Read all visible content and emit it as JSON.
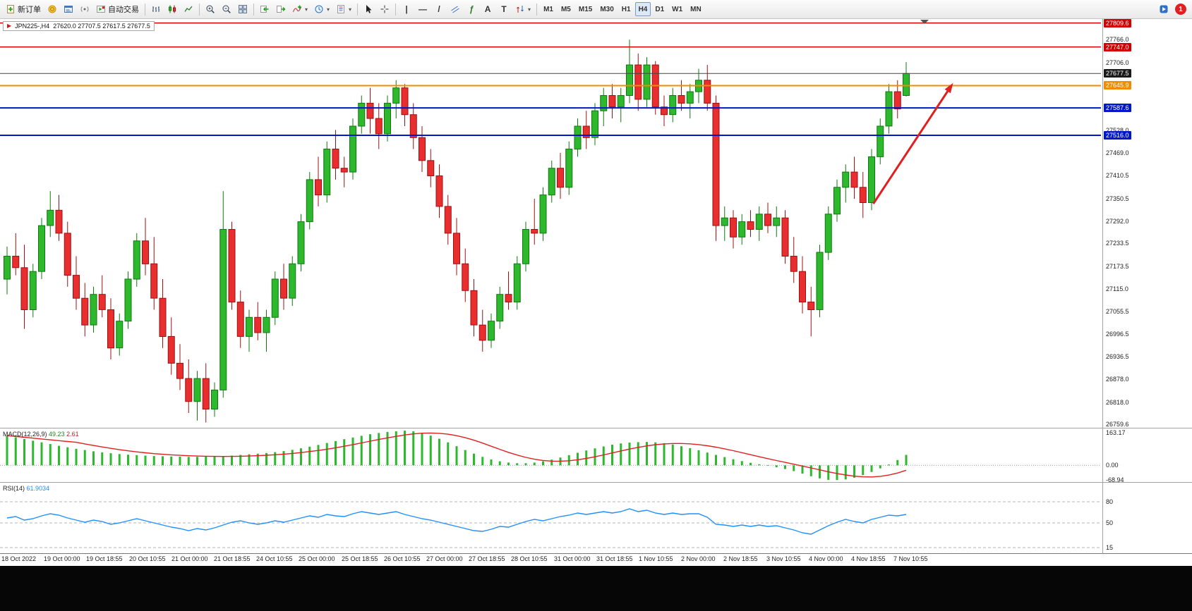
{
  "toolbar": {
    "new_order_label": "新订单",
    "auto_trading_label": "自动交易",
    "glyphs": {
      "vline": "|",
      "hline": "—",
      "trendline": "/",
      "text": "A",
      "text_label": "T",
      "fibonacci": "ƒ",
      "dropdown": "▾"
    },
    "timeframes": [
      "M1",
      "M5",
      "M15",
      "M30",
      "H1",
      "H4",
      "D1",
      "W1",
      "MN"
    ],
    "active_timeframe": "H4",
    "notification_count": "1"
  },
  "chart_data": {
    "type": "candlestick",
    "header": "JPN225-,H4",
    "symbol": "JPN225-",
    "timeframe": "H4",
    "ohlc_header": "27620.0 27707.5 27617.5 27677.5",
    "colors": {
      "up": "#2db82d",
      "up_edge": "#0d7a0d",
      "down": "#e82e2e",
      "down_edge": "#a01010",
      "background": "#ffffff"
    },
    "ohlc": [
      [
        27140,
        27225,
        27100,
        27200
      ],
      [
        27200,
        27260,
        27150,
        27170
      ],
      [
        27170,
        27230,
        27010,
        27060
      ],
      [
        27060,
        27180,
        27040,
        27160
      ],
      [
        27160,
        27300,
        27140,
        27280
      ],
      [
        27280,
        27370,
        27250,
        27320
      ],
      [
        27320,
        27360,
        27240,
        27260
      ],
      [
        27260,
        27290,
        27120,
        27150
      ],
      [
        27150,
        27200,
        27060,
        27090
      ],
      [
        27090,
        27130,
        26990,
        27020
      ],
      [
        27020,
        27120,
        27000,
        27100
      ],
      [
        27100,
        27150,
        27040,
        27060
      ],
      [
        27060,
        27090,
        26930,
        26960
      ],
      [
        26960,
        27050,
        26940,
        27030
      ],
      [
        27030,
        27160,
        27010,
        27140
      ],
      [
        27140,
        27260,
        27120,
        27240
      ],
      [
        27240,
        27300,
        27150,
        27180
      ],
      [
        27180,
        27250,
        27060,
        27090
      ],
      [
        27090,
        27140,
        26960,
        26990
      ],
      [
        26990,
        27040,
        26890,
        26920
      ],
      [
        26920,
        26970,
        26850,
        26880
      ],
      [
        26880,
        26930,
        26790,
        26820
      ],
      [
        26820,
        26900,
        26770,
        26880
      ],
      [
        26880,
        26920,
        26765,
        26800
      ],
      [
        26800,
        26870,
        26780,
        26850
      ],
      [
        26850,
        27370,
        26830,
        27270
      ],
      [
        27270,
        27290,
        27060,
        27080
      ],
      [
        27080,
        27110,
        26960,
        26990
      ],
      [
        26990,
        27060,
        26950,
        27040
      ],
      [
        27040,
        27080,
        26980,
        27000
      ],
      [
        27000,
        27060,
        26950,
        27040
      ],
      [
        27040,
        27160,
        27020,
        27140
      ],
      [
        27140,
        27180,
        27060,
        27090
      ],
      [
        27090,
        27200,
        27070,
        27180
      ],
      [
        27180,
        27310,
        27160,
        27290
      ],
      [
        27290,
        27420,
        27270,
        27400
      ],
      [
        27400,
        27460,
        27330,
        27360
      ],
      [
        27360,
        27500,
        27340,
        27480
      ],
      [
        27480,
        27530,
        27400,
        27430
      ],
      [
        27430,
        27460,
        27380,
        27420
      ],
      [
        27420,
        27560,
        27400,
        27540
      ],
      [
        27540,
        27620,
        27520,
        27600
      ],
      [
        27600,
        27640,
        27520,
        27560
      ],
      [
        27560,
        27600,
        27480,
        27520
      ],
      [
        27520,
        27620,
        27500,
        27600
      ],
      [
        27600,
        27660,
        27560,
        27640
      ],
      [
        27640,
        27650,
        27540,
        27570
      ],
      [
        27570,
        27600,
        27480,
        27510
      ],
      [
        27510,
        27540,
        27420,
        27450
      ],
      [
        27450,
        27480,
        27380,
        27410
      ],
      [
        27410,
        27440,
        27300,
        27330
      ],
      [
        27330,
        27360,
        27230,
        27260
      ],
      [
        27260,
        27300,
        27150,
        27180
      ],
      [
        27180,
        27220,
        27080,
        27110
      ],
      [
        27110,
        27140,
        26990,
        27020
      ],
      [
        27020,
        27060,
        26950,
        26980
      ],
      [
        26980,
        27050,
        26960,
        27030
      ],
      [
        27030,
        27120,
        27010,
        27100
      ],
      [
        27100,
        27160,
        27060,
        27080
      ],
      [
        27080,
        27200,
        27060,
        27180
      ],
      [
        27180,
        27290,
        27160,
        27270
      ],
      [
        27270,
        27350,
        27230,
        27260
      ],
      [
        27260,
        27380,
        27240,
        27360
      ],
      [
        27360,
        27450,
        27340,
        27430
      ],
      [
        27430,
        27470,
        27350,
        27380
      ],
      [
        27380,
        27500,
        27360,
        27480
      ],
      [
        27480,
        27560,
        27460,
        27540
      ],
      [
        27540,
        27580,
        27480,
        27510
      ],
      [
        27510,
        27600,
        27490,
        27580
      ],
      [
        27580,
        27640,
        27540,
        27620
      ],
      [
        27620,
        27650,
        27560,
        27590
      ],
      [
        27590,
        27640,
        27550,
        27620
      ],
      [
        27620,
        27766,
        27600,
        27700
      ],
      [
        27700,
        27730,
        27580,
        27610
      ],
      [
        27610,
        27720,
        27590,
        27700
      ],
      [
        27700,
        27710,
        27570,
        27590
      ],
      [
        27590,
        27620,
        27540,
        27570
      ],
      [
        27570,
        27640,
        27550,
        27620
      ],
      [
        27620,
        27660,
        27580,
        27600
      ],
      [
        27600,
        27650,
        27560,
        27630
      ],
      [
        27630,
        27690,
        27600,
        27660
      ],
      [
        27660,
        27700,
        27580,
        27600
      ],
      [
        27600,
        27620,
        27240,
        27280
      ],
      [
        27280,
        27330,
        27240,
        27300
      ],
      [
        27300,
        27320,
        27220,
        27250
      ],
      [
        27250,
        27310,
        27230,
        27290
      ],
      [
        27290,
        27320,
        27250,
        27270
      ],
      [
        27270,
        27330,
        27240,
        27310
      ],
      [
        27310,
        27340,
        27260,
        27280
      ],
      [
        27280,
        27330,
        27250,
        27300
      ],
      [
        27300,
        27320,
        27180,
        27200
      ],
      [
        27200,
        27250,
        27130,
        27160
      ],
      [
        27160,
        27200,
        27050,
        27080
      ],
      [
        27080,
        27120,
        26990,
        27060
      ],
      [
        27060,
        27230,
        27040,
        27210
      ],
      [
        27210,
        27330,
        27190,
        27310
      ],
      [
        27310,
        27400,
        27290,
        27380
      ],
      [
        27380,
        27440,
        27340,
        27420
      ],
      [
        27420,
        27460,
        27350,
        27380
      ],
      [
        27380,
        27420,
        27300,
        27340
      ],
      [
        27340,
        27480,
        27320,
        27460
      ],
      [
        27460,
        27560,
        27440,
        27540
      ],
      [
        27540,
        27650,
        27520,
        27630
      ],
      [
        27630,
        27660,
        27560,
        27585
      ],
      [
        27620,
        27707.5,
        27617.5,
        27677.5
      ]
    ],
    "x_labels": [
      "18 Oct 2022",
      "19 Oct 00:00",
      "19 Oct 18:55",
      "20 Oct 10:55",
      "21 Oct 00:00",
      "21 Oct 18:55",
      "24 Oct 10:55",
      "25 Oct 00:00",
      "25 Oct 18:55",
      "26 Oct 10:55",
      "27 Oct 00:00",
      "27 Oct 18:55",
      "28 Oct 10:55",
      "31 Oct 00:00",
      "31 Oct 18:55",
      "1 Nov 10:55",
      "2 Nov 00:00",
      "2 Nov 18:55",
      "3 Nov 10:55",
      "4 Nov 00:00",
      "4 Nov 18:55",
      "7 Nov 10:55"
    ],
    "y_axis": {
      "ticks": [
        "27766.0",
        "27706.0",
        "27528.0",
        "27469.0",
        "27410.5",
        "27350.5",
        "27292.0",
        "27233.5",
        "27173.5",
        "27115.0",
        "27055.5",
        "26996.5",
        "26936.5",
        "26878.0",
        "26818.0",
        "26759.6"
      ],
      "tags": [
        {
          "label": "27809.6",
          "color": "#d20000"
        },
        {
          "label": "27747.0",
          "color": "#d20000"
        },
        {
          "label": "27677.5",
          "color": "#1a1a1a"
        },
        {
          "label": "27645.9",
          "color": "#f08c00"
        },
        {
          "label": "27587.6",
          "color": "#0018c8"
        },
        {
          "label": "27516.0",
          "color": "#0018c8"
        }
      ]
    },
    "levels": [
      {
        "price": 27809.6,
        "color": "#d20000",
        "width": 1.5
      },
      {
        "price": 27747.0,
        "color": "#d20000",
        "width": 1.5
      },
      {
        "price": 27677.5,
        "color": "#444444",
        "width": 1
      },
      {
        "price": 27645.9,
        "color": "#f08c00",
        "width": 2
      },
      {
        "price": 27587.6,
        "color": "#0018c8",
        "width": 2
      },
      {
        "price": 27516.0,
        "color": "#0018c8",
        "width": 2
      }
    ],
    "arrow": {
      "from_bar": 100.2,
      "from_price": 27337,
      "to_bar": 109.2,
      "to_price": 27645,
      "color": "#e02020"
    },
    "indicators": {
      "macd": {
        "name": "MACD(12,26,9)",
        "value_main": "49.23",
        "value_signal": "2.61",
        "hist_color": "#2db82d",
        "signal_color": "#e02020",
        "range": [
          -75,
          170
        ],
        "axis": [
          {
            "label": "163.17",
            "value": 163.17
          },
          {
            "label": "0.00",
            "value": 0
          },
          {
            "label": "-68.94",
            "value": -68.94
          }
        ],
        "hist": [
          140,
          132,
          124,
          116,
          108,
          100,
          92,
          85,
          78,
          72,
          66,
          61,
          57,
          53,
          50,
          48,
          46,
          44,
          43,
          42,
          41,
          40,
          40,
          41,
          42,
          44,
          46,
          49,
          52,
          55,
          58,
          62,
          67,
          73,
          80,
          88,
          96,
          105,
          114,
          123,
          131,
          139,
          146,
          152,
          157,
          160,
          163,
          160,
          152,
          140,
          125,
          108,
          90,
          72,
          55,
          40,
          28,
          19,
          13,
          10,
          10,
          13,
          19,
          27,
          37,
          48,
          59,
          70,
          80,
          89,
          97,
          103,
          107,
          109,
          110,
          108,
          104,
          98,
          90,
          81,
          71,
          60,
          49,
          39,
          29,
          20,
          12,
          5,
          -2,
          -9,
          -17,
          -27,
          -39,
          -51,
          -61,
          -68,
          -69,
          -66,
          -58,
          -46,
          -31,
          -14,
          4,
          25,
          49
        ]
      },
      "rsi": {
        "name": "RSI(14)",
        "value": "61.9034",
        "line_color": "#1E90FF",
        "range": [
          10,
          90
        ],
        "levels": [
          {
            "label": "80",
            "value": 80
          },
          {
            "label": "50",
            "value": 50
          },
          {
            "label": "15",
            "value": 15
          }
        ],
        "values": [
          57,
          59,
          54,
          56,
          60,
          63,
          61,
          57,
          54,
          51,
          54,
          52,
          48,
          50,
          53,
          56,
          53,
          50,
          47,
          44,
          42,
          39,
          42,
          40,
          43,
          47,
          51,
          53,
          50,
          48,
          50,
          53,
          51,
          54,
          57,
          60,
          58,
          62,
          60,
          59,
          63,
          66,
          64,
          62,
          64,
          66,
          62,
          59,
          56,
          54,
          51,
          48,
          45,
          42,
          39,
          38,
          41,
          45,
          44,
          48,
          52,
          55,
          53,
          56,
          59,
          61,
          64,
          62,
          64,
          66,
          64,
          66,
          70,
          66,
          68,
          64,
          62,
          64,
          62,
          63,
          63,
          58,
          48,
          47,
          45,
          47,
          45,
          47,
          45,
          46,
          43,
          40,
          36,
          34,
          40,
          46,
          51,
          55,
          52,
          50,
          55,
          58,
          61,
          60,
          62
        ]
      }
    }
  }
}
